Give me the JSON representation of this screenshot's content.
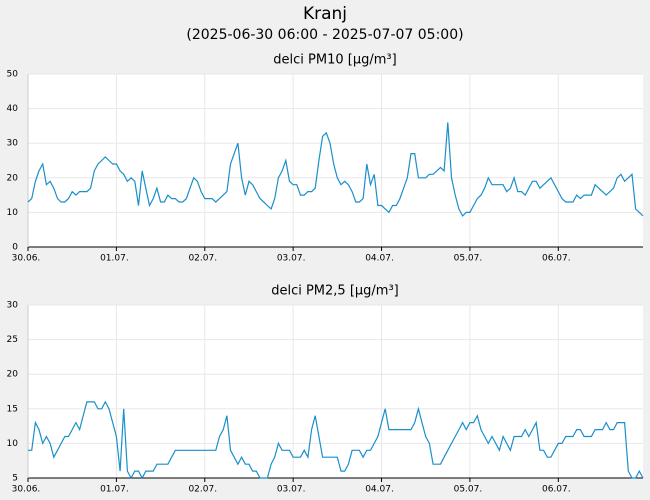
{
  "title": "Kranj",
  "subtitle": "(2025-06-30 06:00 - 2025-07-07 05:00)",
  "chart_data": [
    {
      "type": "line",
      "title": "delci PM10 [µg/m³]",
      "color": "#1a8fcb",
      "grid": true,
      "ylim": [
        0,
        50
      ],
      "yticks": [
        0,
        10,
        20,
        30,
        40,
        50
      ],
      "categories": [
        "30.06.",
        null,
        null,
        null,
        null,
        null,
        null,
        null,
        null,
        null,
        null,
        null,
        null,
        null,
        null,
        null,
        null,
        null,
        null,
        null,
        null,
        null,
        null,
        null,
        "01.07.",
        null,
        null,
        null,
        null,
        null,
        null,
        null,
        null,
        null,
        null,
        null,
        null,
        null,
        null,
        null,
        null,
        null,
        null,
        null,
        null,
        null,
        null,
        null,
        "02.07.",
        null,
        null,
        null,
        null,
        null,
        null,
        null,
        null,
        null,
        null,
        null,
        null,
        null,
        null,
        null,
        null,
        null,
        null,
        null,
        null,
        null,
        null,
        null,
        "03.07.",
        null,
        null,
        null,
        null,
        null,
        null,
        null,
        null,
        null,
        null,
        null,
        null,
        null,
        null,
        null,
        null,
        null,
        null,
        null,
        null,
        null,
        null,
        null,
        "04.07.",
        null,
        null,
        null,
        null,
        null,
        null,
        null,
        null,
        null,
        null,
        null,
        null,
        null,
        null,
        null,
        null,
        null,
        null,
        null,
        null,
        null,
        null,
        null,
        "05.07.",
        null,
        null,
        null,
        null,
        null,
        null,
        null,
        null,
        null,
        null,
        null,
        null,
        null,
        null,
        null,
        null,
        null,
        null,
        null,
        null,
        null,
        null,
        null,
        "06.07.",
        null,
        null,
        null,
        null,
        null,
        null,
        null,
        null,
        null,
        null,
        null,
        null,
        null,
        null,
        null,
        null,
        null,
        null,
        null,
        null,
        null,
        null,
        null
      ],
      "values": [
        13,
        14,
        19,
        22,
        24,
        18,
        19,
        17,
        14,
        13,
        13,
        14,
        16,
        15,
        16,
        16,
        16,
        17,
        22,
        24,
        25,
        26,
        25,
        24,
        24,
        22,
        21,
        19,
        20,
        19,
        12,
        22,
        17,
        12,
        14,
        17,
        13,
        13,
        15,
        14,
        14,
        13,
        13,
        14,
        17,
        20,
        19,
        16,
        14,
        14,
        14,
        13,
        14,
        15,
        16,
        24,
        27,
        30,
        20,
        15,
        19,
        18,
        16,
        14,
        13,
        12,
        11,
        14,
        20,
        22,
        25,
        19,
        18,
        18,
        15,
        15,
        16,
        16,
        17,
        25,
        32,
        33,
        30,
        24,
        20,
        18,
        19,
        18,
        16,
        13,
        13,
        14,
        24,
        18,
        21,
        12,
        12,
        11,
        10,
        12,
        12,
        14,
        17,
        20,
        27,
        27,
        20,
        20,
        20,
        21,
        21,
        22,
        23,
        22,
        36,
        20,
        15,
        11,
        9,
        10,
        10,
        12,
        14,
        15,
        17,
        20,
        18,
        18,
        18,
        18,
        16,
        17,
        20,
        16,
        16,
        15,
        17,
        19,
        19,
        17,
        18,
        19,
        20,
        18,
        16,
        14,
        13,
        13,
        13,
        15,
        14,
        15,
        15,
        15,
        18,
        17,
        16,
        15,
        16,
        17,
        20,
        21,
        19,
        20,
        21,
        11,
        10,
        9
      ]
    },
    {
      "type": "line",
      "title": "delci PM2,5 [µg/m³]",
      "color": "#1a8fcb",
      "grid": true,
      "ylim": [
        5,
        30
      ],
      "yticks": [
        5,
        10,
        15,
        20,
        25,
        30
      ],
      "categories": [
        "30.06.",
        null,
        null,
        null,
        null,
        null,
        null,
        null,
        null,
        null,
        null,
        null,
        null,
        null,
        null,
        null,
        null,
        null,
        null,
        null,
        null,
        null,
        null,
        null,
        "01.07.",
        null,
        null,
        null,
        null,
        null,
        null,
        null,
        null,
        null,
        null,
        null,
        null,
        null,
        null,
        null,
        null,
        null,
        null,
        null,
        null,
        null,
        null,
        null,
        "02.07.",
        null,
        null,
        null,
        null,
        null,
        null,
        null,
        null,
        null,
        null,
        null,
        null,
        null,
        null,
        null,
        null,
        null,
        null,
        null,
        null,
        null,
        null,
        null,
        "03.07.",
        null,
        null,
        null,
        null,
        null,
        null,
        null,
        null,
        null,
        null,
        null,
        null,
        null,
        null,
        null,
        null,
        null,
        null,
        null,
        null,
        null,
        null,
        null,
        "04.07.",
        null,
        null,
        null,
        null,
        null,
        null,
        null,
        null,
        null,
        null,
        null,
        null,
        null,
        null,
        null,
        null,
        null,
        null,
        null,
        null,
        null,
        null,
        null,
        "05.07.",
        null,
        null,
        null,
        null,
        null,
        null,
        null,
        null,
        null,
        null,
        null,
        null,
        null,
        null,
        null,
        null,
        null,
        null,
        null,
        null,
        null,
        null,
        null,
        "06.07.",
        null,
        null,
        null,
        null,
        null,
        null,
        null,
        null,
        null,
        null,
        null,
        null,
        null,
        null,
        null,
        null,
        null,
        null,
        null,
        null,
        null,
        null,
        null
      ],
      "values": [
        9,
        9,
        13,
        12,
        10,
        11,
        10,
        8,
        9,
        10,
        11,
        11,
        12,
        13,
        12,
        14,
        16,
        16,
        16,
        15,
        15,
        16,
        15,
        13,
        11,
        6,
        15,
        6,
        5,
        6,
        6,
        5,
        6,
        6,
        6,
        7,
        7,
        7,
        7,
        8,
        9,
        9,
        9,
        9,
        9,
        9,
        9,
        9,
        9,
        9,
        9,
        9,
        11,
        12,
        14,
        9,
        8,
        7,
        8,
        7,
        7,
        6,
        6,
        5,
        5,
        5,
        7,
        8,
        10,
        9,
        9,
        9,
        8,
        8,
        8,
        9,
        8,
        12,
        14,
        11,
        8,
        8,
        8,
        8,
        8,
        6,
        6,
        7,
        9,
        9,
        9,
        8,
        9,
        9,
        10,
        11,
        13,
        15,
        12,
        12,
        12,
        12,
        12,
        12,
        12,
        13,
        15,
        13,
        11,
        10,
        7,
        7,
        7,
        8,
        9,
        10,
        11,
        12,
        13,
        12,
        13,
        13,
        14,
        12,
        11,
        10,
        11,
        10,
        9,
        11,
        10,
        9,
        11,
        11,
        11,
        12,
        11,
        12,
        13,
        9,
        9,
        8,
        8,
        9,
        10,
        10,
        11,
        11,
        11,
        12,
        12,
        11,
        11,
        11,
        12,
        12,
        12,
        13,
        12,
        12,
        13,
        13,
        13,
        6,
        5,
        5,
        6,
        5
      ]
    }
  ]
}
